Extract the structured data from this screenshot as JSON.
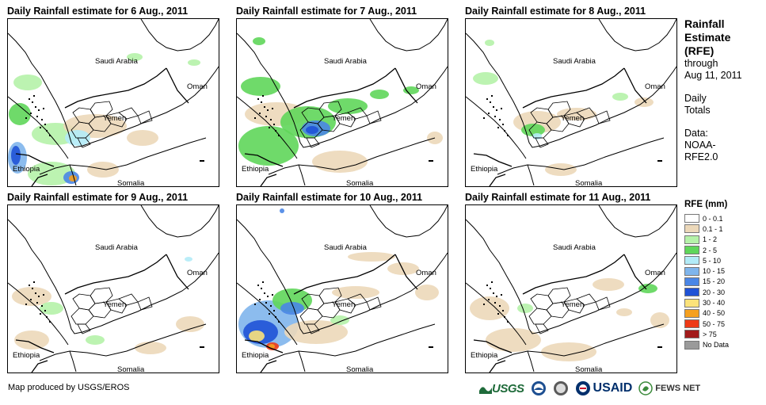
{
  "panels": [
    {
      "title": "Daily Rainfall estimate for 6 Aug., 2011",
      "day": "6 Aug., 2011",
      "rain": [
        {
          "level": 2,
          "cx": 25,
          "cy": 80,
          "rx": 18,
          "ry": 10
        },
        {
          "level": 3,
          "cx": 15,
          "cy": 120,
          "rx": 14,
          "ry": 14
        },
        {
          "level": 2,
          "cx": 60,
          "cy": 145,
          "rx": 30,
          "ry": 14
        },
        {
          "level": 1,
          "cx": 110,
          "cy": 135,
          "rx": 40,
          "ry": 15
        },
        {
          "level": 4,
          "cx": 88,
          "cy": 150,
          "rx": 16,
          "ry": 10
        },
        {
          "level": 2,
          "cx": 55,
          "cy": 195,
          "rx": 30,
          "ry": 15
        },
        {
          "level": 1,
          "cx": 120,
          "cy": 190,
          "rx": 20,
          "ry": 10
        },
        {
          "level": 1,
          "cx": 170,
          "cy": 150,
          "rx": 20,
          "ry": 10
        },
        {
          "level": 2,
          "cx": 160,
          "cy": 48,
          "rx": 10,
          "ry": 5
        },
        {
          "level": 2,
          "cx": 235,
          "cy": 55,
          "rx": 8,
          "ry": 4
        },
        {
          "level": 5,
          "cx": 12,
          "cy": 175,
          "rx": 12,
          "ry": 20
        },
        {
          "level": 7,
          "cx": 10,
          "cy": 172,
          "rx": 6,
          "ry": 12
        },
        {
          "level": 6,
          "cx": 80,
          "cy": 200,
          "rx": 10,
          "ry": 8
        },
        {
          "level": 9,
          "cx": 82,
          "cy": 201,
          "rx": 5,
          "ry": 4
        }
      ]
    },
    {
      "title": "Daily Rainfall estimate for 7 Aug., 2011",
      "day": "7 Aug., 2011",
      "rain": [
        {
          "level": 3,
          "cx": 40,
          "cy": 160,
          "rx": 38,
          "ry": 25
        },
        {
          "level": 3,
          "cx": 30,
          "cy": 85,
          "rx": 25,
          "ry": 12
        },
        {
          "level": 1,
          "cx": 50,
          "cy": 120,
          "rx": 40,
          "ry": 15
        },
        {
          "level": 3,
          "cx": 90,
          "cy": 130,
          "rx": 35,
          "ry": 20
        },
        {
          "level": 6,
          "cx": 100,
          "cy": 138,
          "rx": 18,
          "ry": 10
        },
        {
          "level": 7,
          "cx": 95,
          "cy": 140,
          "rx": 8,
          "ry": 5
        },
        {
          "level": 3,
          "cx": 140,
          "cy": 110,
          "rx": 25,
          "ry": 10
        },
        {
          "level": 1,
          "cx": 130,
          "cy": 180,
          "rx": 35,
          "ry": 14
        },
        {
          "level": 3,
          "cx": 180,
          "cy": 95,
          "rx": 12,
          "ry": 6
        },
        {
          "level": 3,
          "cx": 220,
          "cy": 90,
          "rx": 10,
          "ry": 5
        },
        {
          "level": 3,
          "cx": 28,
          "cy": 28,
          "rx": 8,
          "ry": 5
        },
        {
          "level": 1,
          "cx": 250,
          "cy": 150,
          "rx": 10,
          "ry": 8
        }
      ]
    },
    {
      "title": "Daily Rainfall estimate for 8 Aug., 2011",
      "day": "8 Aug., 2011",
      "rain": [
        {
          "level": 2,
          "cx": 25,
          "cy": 75,
          "rx": 16,
          "ry": 8
        },
        {
          "level": 1,
          "cx": 90,
          "cy": 130,
          "rx": 30,
          "ry": 14
        },
        {
          "level": 3,
          "cx": 85,
          "cy": 140,
          "rx": 15,
          "ry": 8
        },
        {
          "level": 4,
          "cx": 90,
          "cy": 148,
          "rx": 6,
          "ry": 4
        },
        {
          "level": 1,
          "cx": 140,
          "cy": 120,
          "rx": 25,
          "ry": 8
        },
        {
          "level": 2,
          "cx": 195,
          "cy": 98,
          "rx": 10,
          "ry": 5
        },
        {
          "level": 1,
          "cx": 225,
          "cy": 105,
          "rx": 12,
          "ry": 6
        },
        {
          "level": 2,
          "cx": 30,
          "cy": 30,
          "rx": 6,
          "ry": 4
        },
        {
          "level": 1,
          "cx": 120,
          "cy": 190,
          "rx": 20,
          "ry": 8
        }
      ]
    },
    {
      "title": "Daily Rainfall estimate for 9 Aug., 2011",
      "day": "9 Aug., 2011",
      "rain": [
        {
          "level": 1,
          "cx": 30,
          "cy": 115,
          "rx": 25,
          "ry": 12
        },
        {
          "level": 2,
          "cx": 55,
          "cy": 130,
          "rx": 15,
          "ry": 8
        },
        {
          "level": 1,
          "cx": 30,
          "cy": 170,
          "rx": 22,
          "ry": 12
        },
        {
          "level": 2,
          "cx": 110,
          "cy": 170,
          "rx": 12,
          "ry": 6
        },
        {
          "level": 1,
          "cx": 180,
          "cy": 180,
          "rx": 20,
          "ry": 8
        },
        {
          "level": 1,
          "cx": 230,
          "cy": 150,
          "rx": 18,
          "ry": 10
        },
        {
          "level": 4,
          "cx": 228,
          "cy": 68,
          "rx": 5,
          "ry": 3
        }
      ]
    },
    {
      "title": "Daily Rainfall estimate for 10 Aug., 2011",
      "day": "10 Aug., 2011",
      "rain": [
        {
          "level": 5,
          "cx": 40,
          "cy": 150,
          "rx": 38,
          "ry": 30
        },
        {
          "level": 7,
          "cx": 30,
          "cy": 160,
          "rx": 22,
          "ry": 15
        },
        {
          "level": 8,
          "cx": 25,
          "cy": 165,
          "rx": 10,
          "ry": 7
        },
        {
          "level": 3,
          "cx": 70,
          "cy": 120,
          "rx": 25,
          "ry": 15
        },
        {
          "level": 6,
          "cx": 70,
          "cy": 130,
          "rx": 15,
          "ry": 8
        },
        {
          "level": 1,
          "cx": 100,
          "cy": 160,
          "rx": 40,
          "ry": 15
        },
        {
          "level": 1,
          "cx": 150,
          "cy": 110,
          "rx": 30,
          "ry": 8
        },
        {
          "level": 2,
          "cx": 130,
          "cy": 145,
          "rx": 12,
          "ry": 6
        },
        {
          "level": 1,
          "cx": 210,
          "cy": 80,
          "rx": 20,
          "ry": 8
        },
        {
          "level": 1,
          "cx": 170,
          "cy": 65,
          "rx": 30,
          "ry": 6
        },
        {
          "level": 1,
          "cx": 240,
          "cy": 110,
          "rx": 15,
          "ry": 10
        },
        {
          "level": 10,
          "cx": 45,
          "cy": 178,
          "rx": 8,
          "ry": 5
        },
        {
          "level": 9,
          "cx": 44,
          "cy": 178,
          "rx": 4,
          "ry": 3
        },
        {
          "level": 6,
          "cx": 57,
          "cy": 7,
          "rx": 3,
          "ry": 3
        }
      ]
    },
    {
      "title": "Daily Rainfall estimate for 11 Aug., 2011",
      "day": "11 Aug., 2011",
      "rain": [
        {
          "level": 1,
          "cx": 30,
          "cy": 130,
          "rx": 25,
          "ry": 15
        },
        {
          "level": 1,
          "cx": 60,
          "cy": 170,
          "rx": 35,
          "ry": 15
        },
        {
          "level": 2,
          "cx": 75,
          "cy": 130,
          "rx": 10,
          "ry": 6
        },
        {
          "level": 1,
          "cx": 130,
          "cy": 185,
          "rx": 35,
          "ry": 12
        },
        {
          "level": 1,
          "cx": 180,
          "cy": 100,
          "rx": 20,
          "ry": 8
        },
        {
          "level": 3,
          "cx": 230,
          "cy": 105,
          "rx": 12,
          "ry": 6
        },
        {
          "level": 1,
          "cx": 245,
          "cy": 145,
          "rx": 12,
          "ry": 10
        },
        {
          "level": 1,
          "cx": 200,
          "cy": 135,
          "rx": 10,
          "ry": 5
        }
      ]
    }
  ],
  "countries": {
    "saudi_arabia": "Saudi Arabia",
    "oman": "Oman",
    "yemen": "Yemen",
    "ethiopia": "Ethiopia",
    "somalia": "Somalia"
  },
  "sidebar": {
    "title_line1": "Rainfall",
    "title_line2": "Estimate",
    "title_line3": "(RFE)",
    "through": "through",
    "date": "Aug 11, 2011",
    "daily_line1": "Daily",
    "daily_line2": "Totals",
    "data_line1": "Data:",
    "data_line2": "NOAA-",
    "data_line3": "RFE2.0"
  },
  "legend": {
    "title": "RFE (mm)",
    "items": [
      {
        "label": "0 - 0.1",
        "color": "#ffffff"
      },
      {
        "label": "0.1 - 1",
        "color": "#ecd8b9"
      },
      {
        "label": "1 - 2",
        "color": "#b5f2a9"
      },
      {
        "label": "2 - 5",
        "color": "#5fd65a"
      },
      {
        "label": "5 - 10",
        "color": "#b2ebf7"
      },
      {
        "label": "10 - 15",
        "color": "#7fb5ec"
      },
      {
        "label": "15 - 20",
        "color": "#4a86e6"
      },
      {
        "label": "20 - 30",
        "color": "#1f52d6"
      },
      {
        "label": "30 - 40",
        "color": "#fbe27a"
      },
      {
        "label": "40 - 50",
        "color": "#f5a01f"
      },
      {
        "label": "50 - 75",
        "color": "#ee3a16"
      },
      {
        "label": "> 75",
        "color": "#a21b1b"
      },
      {
        "label": "No Data",
        "color": "#9a9a9a"
      }
    ]
  },
  "credit": "Map produced by USGS/EROS",
  "logos": {
    "usgs": "USGS",
    "usaid": "USAID",
    "fews": "FEWS NET"
  }
}
